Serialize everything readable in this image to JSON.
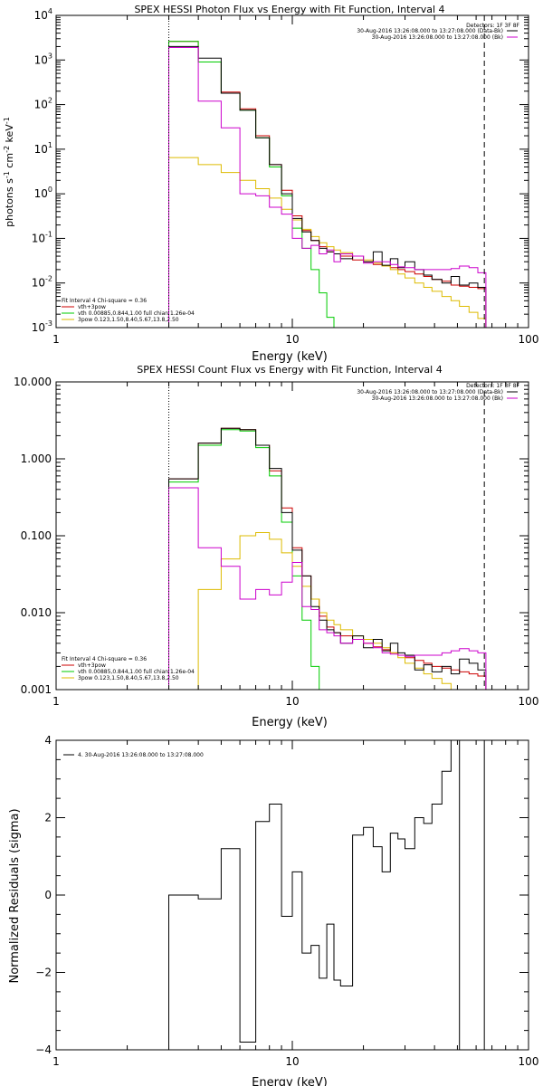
{
  "chart_data": [
    {
      "type": "line",
      "title": "SPEX HESSI Photon Flux vs Energy with Fit Function, Interval 4",
      "xlabel": "Energy (keV)",
      "ylabel_parts": [
        "photons s",
        "-1",
        " cm",
        "-2",
        " keV",
        "-1"
      ],
      "xscale": "log",
      "yscale": "log",
      "xlim": [
        1,
        100
      ],
      "ylim": [
        0.001,
        10000
      ],
      "x_ticks": [
        1,
        10,
        100
      ],
      "x_tick_labels": [
        "1",
        "10",
        "100"
      ],
      "y_ticks": [
        0.001,
        0.01,
        0.1,
        1,
        10,
        100,
        1000,
        10000
      ],
      "y_tick_labels": [
        [
          "10",
          "-3"
        ],
        [
          "10",
          "-2"
        ],
        [
          "10",
          "-1"
        ],
        [
          "10",
          "0"
        ],
        [
          "10",
          "1"
        ],
        [
          "10",
          "2"
        ],
        [
          "10",
          "3"
        ],
        [
          "10",
          "4"
        ]
      ],
      "info": [
        "Detectors: 1F 3F 8F",
        "30-Aug-2016 13:26:08.000 to 13:27:08.000 (Data-Bk)",
        "30-Aug-2016 13:26:08.000 to 13:27:08.000 (Bk)"
      ],
      "info_colors": [
        "#000000",
        "#cc00cc"
      ],
      "legend": [
        {
          "label": "Fit Interval  4    Chi-square = 0.36",
          "color": null
        },
        {
          "label": "vth+3pow",
          "color": "#cc0000"
        },
        {
          "label": "vth 0.00885,0.844,1.00   full chian 1.26e-04",
          "color": "#00cc00"
        },
        {
          "label": "3pow  0.123,1.50,8.40,5.67,13.8,2.50",
          "color": "#ddbb00"
        }
      ],
      "vlines": [
        {
          "x": 3.0,
          "style": "dotted"
        },
        {
          "x": 65.0,
          "style": "dashed"
        }
      ],
      "edges": [
        3.0,
        4.0,
        5.0,
        6.0,
        7.0,
        8.0,
        9.0,
        10.0,
        11.0,
        12.0,
        13.0,
        14.0,
        15.0,
        16.0,
        18.0,
        20.0,
        22.0,
        24.0,
        26.0,
        28.0,
        30.0,
        33.0,
        36.0,
        39.0,
        43.0,
        47.0,
        51.0,
        56.0,
        61.0,
        66.0
      ],
      "series": [
        {
          "name": "vth+3pow",
          "color": "#cc0000",
          "values": [
            2600,
            900,
            190,
            80,
            20,
            4.5,
            1.2,
            0.32,
            0.15,
            0.09,
            0.065,
            0.05,
            0.045,
            0.04,
            0.033,
            0.03,
            0.026,
            0.024,
            0.022,
            0.02,
            0.018,
            0.016,
            0.014,
            0.012,
            0.011,
            0.009,
            0.0085,
            0.008,
            0.0075
          ]
        },
        {
          "name": "vth",
          "color": "#00cc00",
          "values": [
            2600,
            900,
            180,
            75,
            18,
            4.0,
            0.9,
            0.17,
            0.06,
            0.02,
            0.006,
            0.0017,
            0.0008,
            0.0003
          ]
        },
        {
          "name": "3pow",
          "color": "#ddbb00",
          "values": [
            6.5,
            4.5,
            3.0,
            2.0,
            1.3,
            0.8,
            0.45,
            0.26,
            0.16,
            0.11,
            0.08,
            0.065,
            0.055,
            0.048,
            0.04,
            0.033,
            0.028,
            0.024,
            0.02,
            0.016,
            0.013,
            0.01,
            0.008,
            0.0065,
            0.005,
            0.004,
            0.003,
            0.0022,
            0.0016
          ]
        },
        {
          "name": "Data-Bk",
          "color": "#000000",
          "values": [
            2000,
            1100,
            180,
            75,
            18,
            4.5,
            1.0,
            0.28,
            0.14,
            0.09,
            0.06,
            0.05,
            0.045,
            0.035,
            0.04,
            0.03,
            0.05,
            0.025,
            0.035,
            0.022,
            0.03,
            0.02,
            0.015,
            0.012,
            0.01,
            0.014,
            0.009,
            0.01,
            0.008
          ]
        },
        {
          "name": "Bk",
          "color": "#cc00cc",
          "values": [
            1900,
            120,
            30,
            1.0,
            0.9,
            0.5,
            0.35,
            0.1,
            0.06,
            0.07,
            0.045,
            0.055,
            0.03,
            0.045,
            0.04,
            0.028,
            0.03,
            0.03,
            0.026,
            0.023,
            0.022,
            0.02,
            0.02,
            0.02,
            0.02,
            0.021,
            0.024,
            0.022,
            0.017
          ]
        }
      ]
    },
    {
      "type": "line",
      "title": "SPEX HESSI Count Flux vs Energy with Fit Function, Interval 4",
      "xlabel": "Energy (keV)",
      "xscale": "log",
      "yscale": "log",
      "xlim": [
        1,
        100
      ],
      "ylim": [
        0.001,
        10
      ],
      "x_ticks": [
        1,
        10,
        100
      ],
      "x_tick_labels": [
        "1",
        "10",
        "100"
      ],
      "y_ticks": [
        0.001,
        0.01,
        0.1,
        1,
        10
      ],
      "y_tick_labels": [
        "0.001",
        "0.010",
        "0.100",
        "1.000",
        "10.000"
      ],
      "info": [
        "Detectors: 1F 3F 8F",
        "30-Aug-2016 13:26:08.000 to 13:27:08.000 (Data-Bk)",
        "30-Aug-2016 13:26:08.000 to 13:27:08.000 (Bk)"
      ],
      "info_colors": [
        "#000000",
        "#cc00cc"
      ],
      "legend": [
        {
          "label": "Fit Interval  4    Chi-square = 0.36",
          "color": null
        },
        {
          "label": "vth+3pow",
          "color": "#cc0000"
        },
        {
          "label": "vth 0.00885,0.844,1.00   full chian 1.26e-04",
          "color": "#00cc00"
        },
        {
          "label": "3pow  0.123,1.50,8.40,5.67,13.8,2.50",
          "color": "#ddbb00"
        }
      ],
      "vlines": [
        {
          "x": 3.0,
          "style": "dotted"
        },
        {
          "x": 65.0,
          "style": "dashed"
        }
      ],
      "edges": [
        3.0,
        4.0,
        5.0,
        6.0,
        7.0,
        8.0,
        9.0,
        10.0,
        11.0,
        12.0,
        13.0,
        14.0,
        15.0,
        16.0,
        18.0,
        20.0,
        22.0,
        24.0,
        26.0,
        28.0,
        30.0,
        33.0,
        36.0,
        39.0,
        43.0,
        47.0,
        51.0,
        56.0,
        61.0,
        66.0
      ],
      "series": [
        {
          "name": "vth+3pow",
          "color": "#cc0000",
          "values": [
            0.55,
            1.6,
            2.5,
            2.4,
            1.5,
            0.7,
            0.23,
            0.07,
            0.03,
            0.015,
            0.009,
            0.0065,
            0.0055,
            0.005,
            0.0045,
            0.004,
            0.0036,
            0.0033,
            0.003,
            0.0028,
            0.0026,
            0.0024,
            0.0022,
            0.002,
            0.0019,
            0.0018,
            0.0017,
            0.0016,
            0.0015
          ]
        },
        {
          "name": "vth",
          "color": "#00cc00",
          "values": [
            0.5,
            1.5,
            2.4,
            2.3,
            1.4,
            0.6,
            0.15,
            0.03,
            0.008,
            0.002,
            0.0007
          ]
        },
        {
          "name": "3pow",
          "color": "#ddbb00",
          "values": [
            0.0006,
            0.02,
            0.05,
            0.1,
            0.11,
            0.09,
            0.06,
            0.04,
            0.022,
            0.015,
            0.01,
            0.008,
            0.007,
            0.006,
            0.005,
            0.0045,
            0.004,
            0.0035,
            0.003,
            0.0026,
            0.0022,
            0.0019,
            0.0016,
            0.0014,
            0.0012,
            0.001,
            0.0009
          ]
        },
        {
          "name": "Data-Bk",
          "color": "#000000",
          "values": [
            0.55,
            1.6,
            2.5,
            2.4,
            1.5,
            0.75,
            0.2,
            0.065,
            0.03,
            0.012,
            0.008,
            0.006,
            0.0055,
            0.004,
            0.005,
            0.0035,
            0.0045,
            0.0032,
            0.004,
            0.003,
            0.0028,
            0.0018,
            0.0021,
            0.0017,
            0.002,
            0.0016,
            0.0025,
            0.0022,
            0.0018
          ]
        },
        {
          "name": "Bk",
          "color": "#cc00cc",
          "values": [
            0.42,
            0.07,
            0.04,
            0.015,
            0.02,
            0.017,
            0.025,
            0.045,
            0.012,
            0.011,
            0.006,
            0.0055,
            0.005,
            0.004,
            0.0045,
            0.004,
            0.0035,
            0.003,
            0.0029,
            0.0028,
            0.0027,
            0.0028,
            0.0028,
            0.0028,
            0.003,
            0.0032,
            0.0034,
            0.0032,
            0.003
          ]
        }
      ]
    },
    {
      "type": "line",
      "title": "",
      "xlabel": "Energy (keV)",
      "ylabel": "Normalized Residuals (sigma)",
      "xscale": "log",
      "yscale": "linear",
      "xlim": [
        1,
        100
      ],
      "ylim": [
        -4,
        4
      ],
      "x_ticks": [
        1,
        10,
        100
      ],
      "x_tick_labels": [
        "1",
        "10",
        "100"
      ],
      "y_ticks": [
        -4,
        -2,
        0,
        2,
        4
      ],
      "y_tick_labels": [
        "−4",
        "−2",
        "0",
        "2",
        "4"
      ],
      "legend": [
        {
          "label": "4. 30-Aug-2016 13:26:08.000 to 13:27:08.000",
          "color": "#000000"
        }
      ],
      "vlines": [
        {
          "x": 65.0,
          "style": "solid"
        }
      ],
      "edges": [
        3.0,
        4.0,
        5.0,
        6.0,
        7.0,
        8.0,
        9.0,
        10.0,
        11.0,
        12.0,
        13.0,
        14.0,
        15.0,
        16.0,
        18.0,
        20.0,
        22.0,
        24.0,
        26.0,
        28.0,
        30.0,
        33.0,
        36.0,
        39.0,
        43.0,
        47.0,
        51.0,
        56.0,
        61.0,
        66.0
      ],
      "series": [
        {
          "name": "residuals",
          "color": "#000000",
          "values": [
            0.0,
            -0.1,
            1.2,
            -3.8,
            1.9,
            2.35,
            -0.55,
            0.6,
            -1.5,
            -1.3,
            -2.15,
            -0.75,
            -2.2,
            -2.35,
            1.55,
            1.75,
            1.25,
            0.6,
            1.6,
            1.45,
            1.2,
            2.0,
            1.85,
            2.35,
            3.2,
            4.0
          ]
        }
      ]
    }
  ]
}
